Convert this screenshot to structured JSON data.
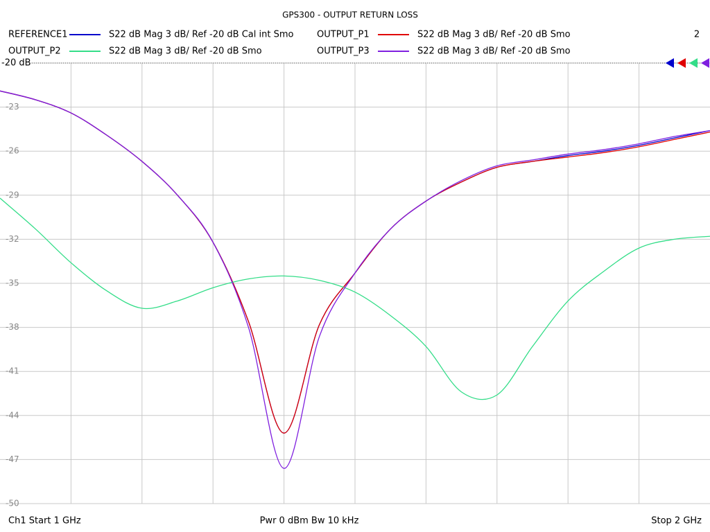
{
  "chart_data": {
    "type": "line",
    "title": "GPS300 - OUTPUT RETURN LOSS",
    "window_number": "2",
    "reference_label": "-20 dB",
    "start_label": "Ch1  Start  1 GHz",
    "center_label": "Pwr  0 dBm  Bw  10 kHz",
    "stop_label": "Stop  2 GHz",
    "x": [
      1.0,
      1.05,
      1.1,
      1.15,
      1.2,
      1.25,
      1.3,
      1.35,
      1.4,
      1.45,
      1.5,
      1.55,
      1.6,
      1.65,
      1.7,
      1.75,
      1.8,
      1.85,
      1.9,
      1.95,
      2.0
    ],
    "xlim": [
      1.0,
      2.0
    ],
    "ylim": [
      -50,
      -20
    ],
    "yticks": [
      -20,
      -23,
      -26,
      -29,
      -32,
      -35,
      -38,
      -41,
      -44,
      -47,
      -50
    ],
    "grid": true,
    "series": [
      {
        "name": "REFERENCE1",
        "description": "S22  dB Mag  3 dB/ Ref -20 dB  Cal int Smo",
        "color": "#0000cc",
        "values": [
          -21.9,
          -22.5,
          -23.4,
          -24.9,
          -26.7,
          -29.0,
          -32.2,
          -37.6,
          -45.2,
          -37.8,
          -34.3,
          -31.3,
          -29.4,
          -28.1,
          -27.1,
          -26.7,
          -26.3,
          -26.0,
          -25.6,
          -25.1,
          -24.6
        ]
      },
      {
        "name": "OUTPUT_P1",
        "description": "S22  dB Mag  3 dB/ Ref -20 dB  Smo",
        "color": "#e00000",
        "values": [
          -21.9,
          -22.5,
          -23.4,
          -24.9,
          -26.7,
          -29.0,
          -32.2,
          -37.6,
          -45.2,
          -37.8,
          -34.3,
          -31.3,
          -29.4,
          -28.1,
          -27.1,
          -26.7,
          -26.4,
          -26.1,
          -25.7,
          -25.2,
          -24.7
        ]
      },
      {
        "name": "OUTPUT_P2",
        "description": "S22  dB Mag  3 dB/ Ref -20 dB  Smo",
        "color": "#33dd88",
        "values": [
          -29.2,
          -31.3,
          -33.6,
          -35.5,
          -36.7,
          -36.2,
          -35.3,
          -34.7,
          -34.5,
          -34.8,
          -35.6,
          -37.2,
          -39.3,
          -42.4,
          -42.6,
          -39.3,
          -36.2,
          -34.2,
          -32.6,
          -32.0,
          -31.8
        ]
      },
      {
        "name": "OUTPUT_P3",
        "description": "S22  dB Mag  3 dB/ Ref -20 dB  Smo",
        "color": "#7f1fdf",
        "values": [
          -21.9,
          -22.5,
          -23.4,
          -24.9,
          -26.7,
          -29.0,
          -32.2,
          -38.0,
          -47.6,
          -38.6,
          -34.3,
          -31.3,
          -29.4,
          -28.0,
          -27.0,
          -26.6,
          -26.2,
          -25.9,
          -25.5,
          -25.0,
          -24.6
        ]
      }
    ]
  }
}
